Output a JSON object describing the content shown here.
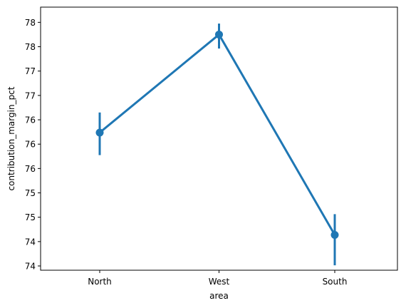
{
  "chart_data": {
    "type": "line",
    "title": "",
    "xlabel": "area",
    "ylabel": "contribution_margin_pct",
    "categories": [
      "North",
      "West",
      "South"
    ],
    "series": [
      {
        "color": "#1f77b4",
        "values": [
          76.24,
          77.85,
          74.56
        ],
        "ci_low": [
          75.87,
          77.62,
          74.06
        ],
        "ci_high": [
          76.57,
          78.03,
          74.9
        ]
      }
    ],
    "ylim": [
      73.98,
      78.3
    ],
    "yticks": [
      {
        "value": 74.05,
        "label": "74"
      },
      {
        "value": 74.45,
        "label": "74"
      },
      {
        "value": 74.85,
        "label": "75"
      },
      {
        "value": 75.25,
        "label": "75"
      },
      {
        "value": 75.65,
        "label": "76"
      },
      {
        "value": 76.05,
        "label": "76"
      },
      {
        "value": 76.45,
        "label": "76"
      },
      {
        "value": 76.85,
        "label": "77"
      },
      {
        "value": 77.25,
        "label": "77"
      },
      {
        "value": 77.65,
        "label": "78"
      },
      {
        "value": 78.05,
        "label": "78"
      }
    ],
    "grid": false,
    "legend": "none"
  }
}
